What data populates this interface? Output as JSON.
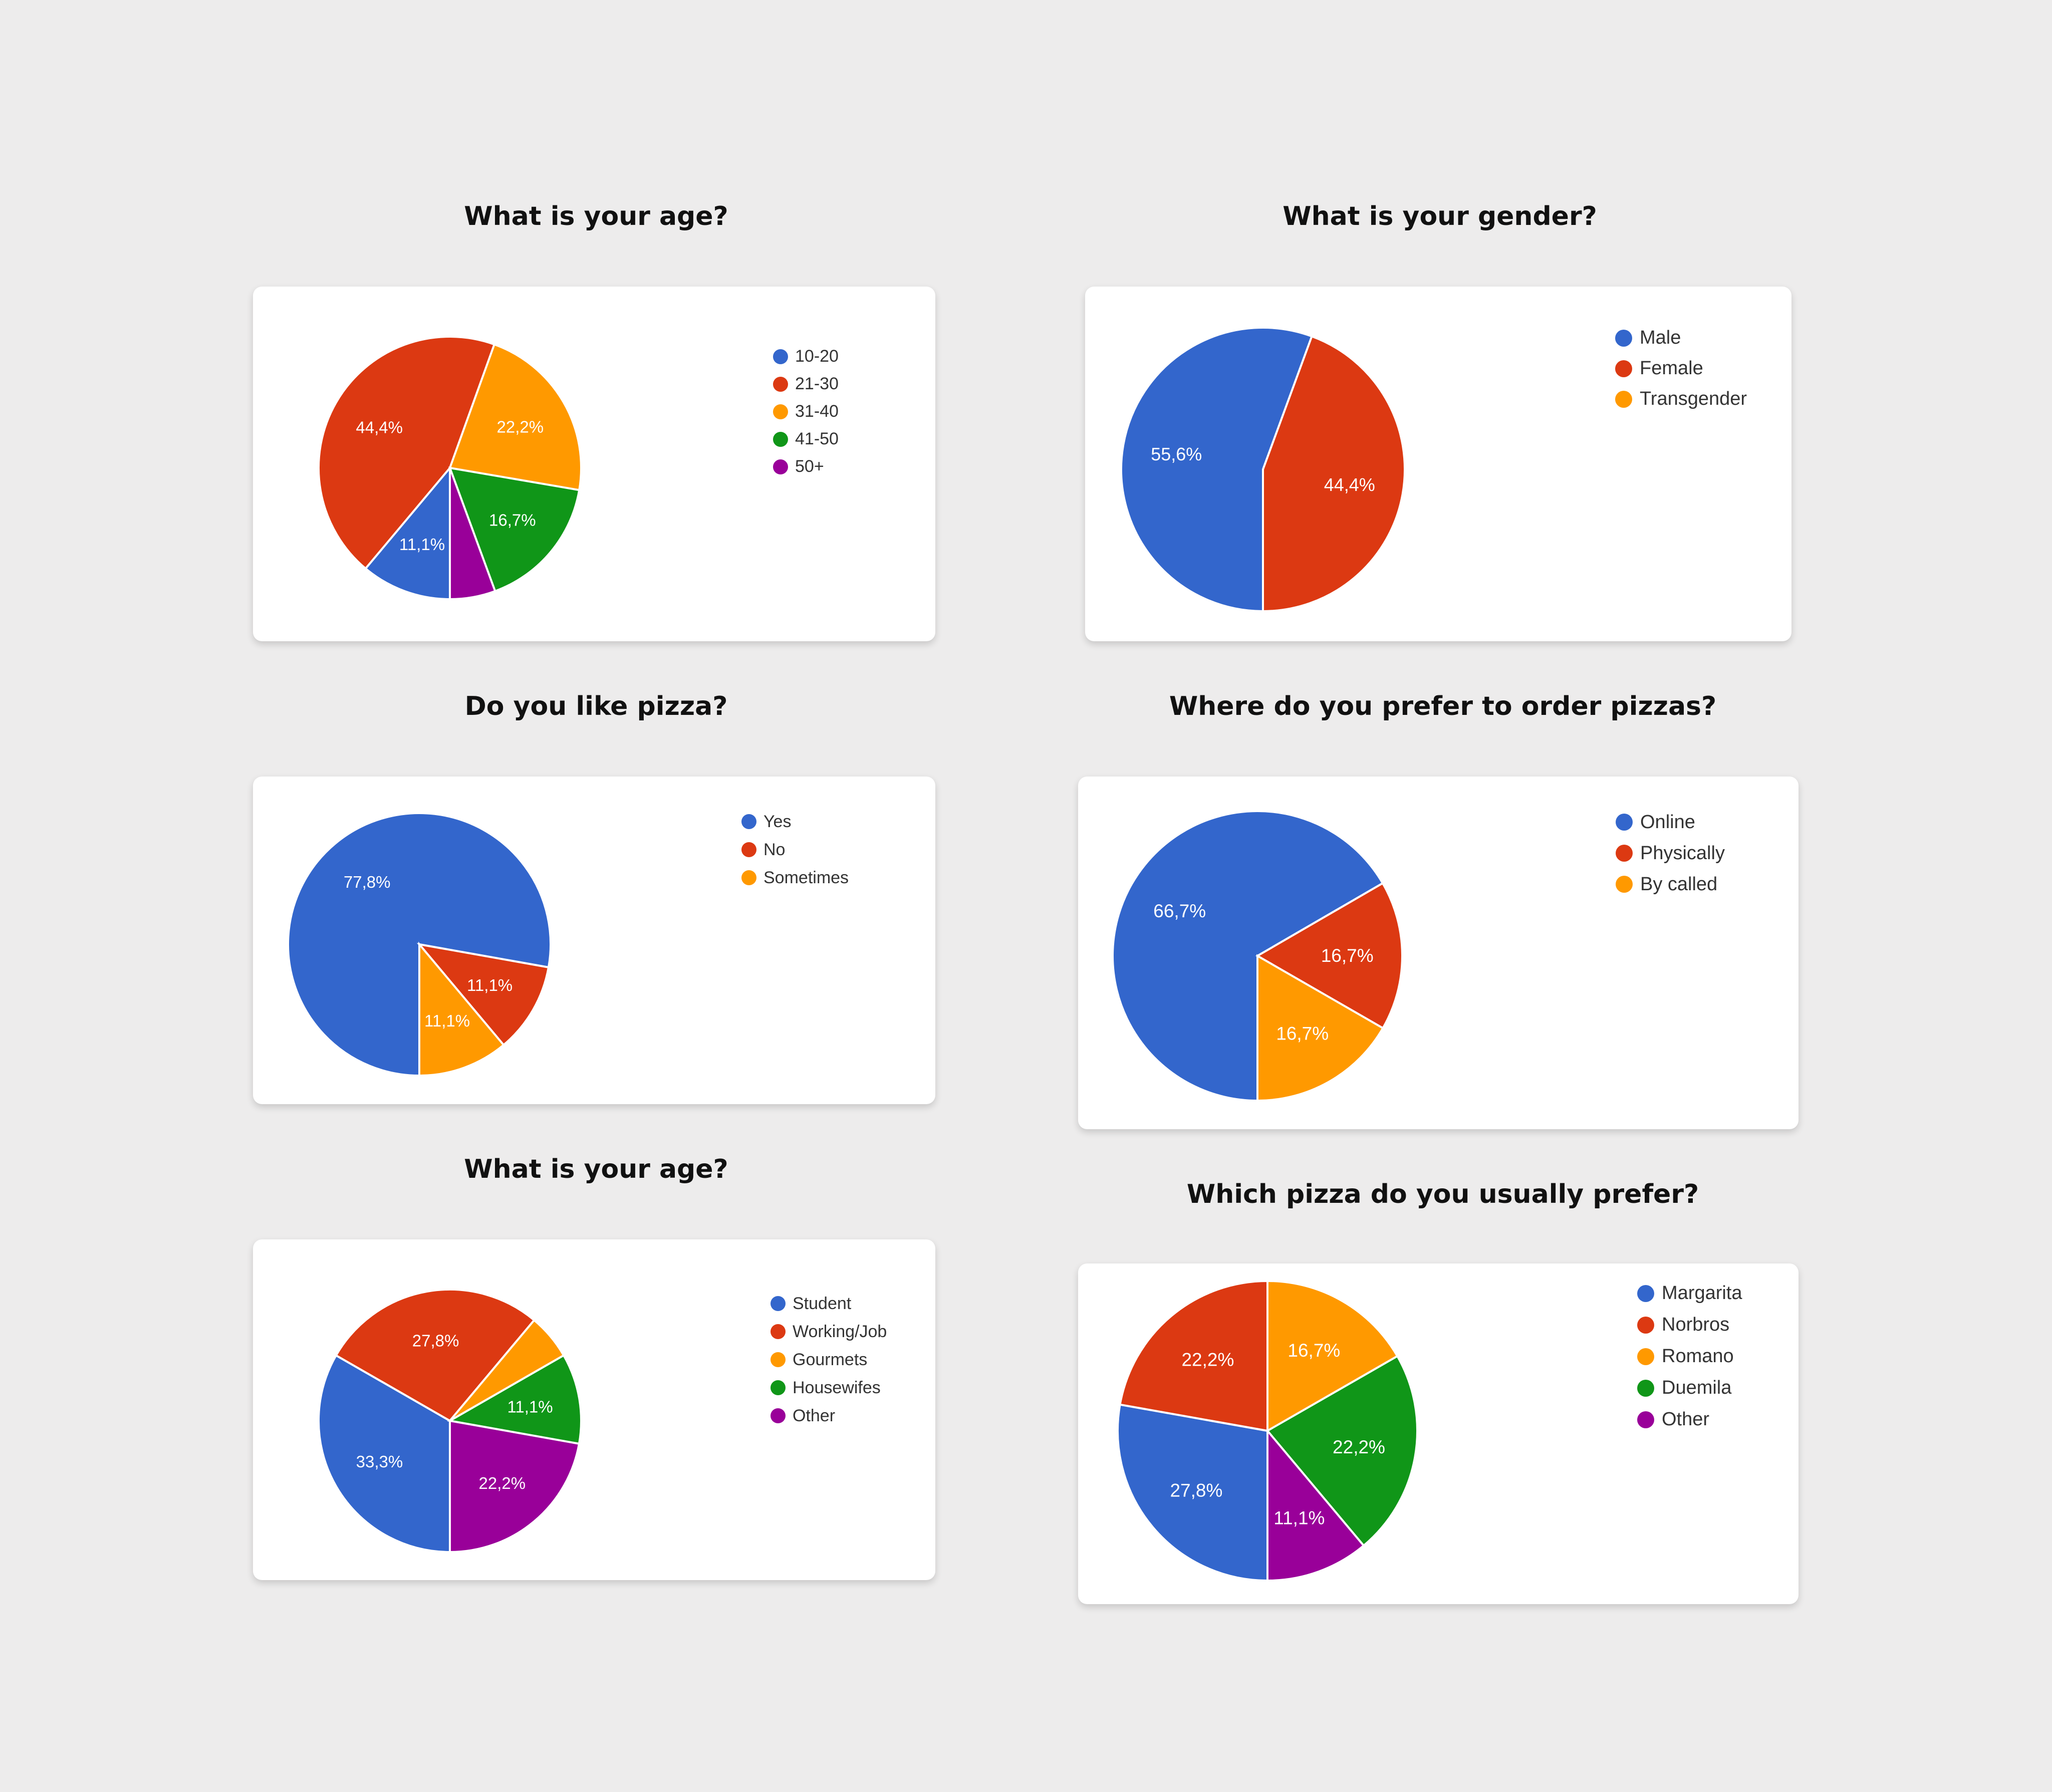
{
  "charts": [
    {
      "id": "age",
      "title": "What is your age?",
      "chart_data": {
        "type": "pie",
        "title": "What is your age?",
        "labels": [
          "10-20",
          "21-30",
          "31-40",
          "41-50",
          "50+"
        ],
        "values": [
          11.1,
          44.4,
          22.2,
          16.7,
          5.6
        ],
        "slice_labels": [
          "11,1%",
          "44,4%",
          "22,2%",
          "16,7%",
          ""
        ],
        "colors": [
          "#3366cc",
          "#dc3912",
          "#ff9900",
          "#109618",
          "#990099"
        ],
        "legend_position": "right"
      }
    },
    {
      "id": "gender",
      "title": "What is your gender?",
      "chart_data": {
        "type": "pie",
        "title": "What is your gender?",
        "labels": [
          "Male",
          "Female",
          "Transgender"
        ],
        "values": [
          55.6,
          44.4,
          0
        ],
        "slice_labels": [
          "55,6%",
          "44,4%",
          ""
        ],
        "colors": [
          "#3366cc",
          "#dc3912",
          "#ff9900"
        ],
        "legend_position": "right"
      }
    },
    {
      "id": "pizza",
      "title": "Do you like pizza?",
      "chart_data": {
        "type": "pie",
        "title": "Do you like pizza?",
        "labels": [
          "Yes",
          "No",
          "Sometimes"
        ],
        "values": [
          77.8,
          11.1,
          11.1
        ],
        "slice_labels": [
          "77,8%",
          "11,1%",
          "11,1%"
        ],
        "colors": [
          "#3366cc",
          "#dc3912",
          "#ff9900"
        ],
        "legend_position": "right"
      }
    },
    {
      "id": "order",
      "title": "Where do you prefer to order pizzas?",
      "chart_data": {
        "type": "pie",
        "title": "Where do you prefer to order pizzas?",
        "labels": [
          "Online",
          "Physically",
          "By called"
        ],
        "values": [
          66.7,
          16.7,
          16.7
        ],
        "slice_labels": [
          "66,7%",
          "16,7%",
          "16,7%"
        ],
        "colors": [
          "#3366cc",
          "#dc3912",
          "#ff9900"
        ],
        "legend_position": "right"
      }
    },
    {
      "id": "occupation",
      "title": "What is your age?",
      "chart_data": {
        "type": "pie",
        "title": "What is your age?",
        "labels": [
          "Student",
          "Working/Job",
          "Gourmets",
          "Housewifes",
          "Other"
        ],
        "values": [
          33.3,
          27.8,
          5.6,
          11.1,
          22.2
        ],
        "slice_labels": [
          "33,3%",
          "27,8%",
          "",
          "11,1%",
          "22,2%"
        ],
        "colors": [
          "#3366cc",
          "#dc3912",
          "#ff9900",
          "#109618",
          "#990099"
        ],
        "legend_position": "right"
      }
    },
    {
      "id": "type",
      "title": "Which pizza do you usually prefer?",
      "chart_data": {
        "type": "pie",
        "title": "Which pizza do you usually prefer?",
        "labels": [
          "Margarita",
          "Norbros",
          "Romano",
          "Duemila",
          "Other"
        ],
        "values": [
          27.8,
          22.2,
          16.7,
          22.2,
          11.1
        ],
        "slice_labels": [
          "27,8%",
          "22,2%",
          "16,7%",
          "22,2%",
          "11,1%"
        ],
        "colors": [
          "#3366cc",
          "#dc3912",
          "#ff9900",
          "#109618",
          "#990099"
        ],
        "legend_position": "right"
      }
    }
  ]
}
